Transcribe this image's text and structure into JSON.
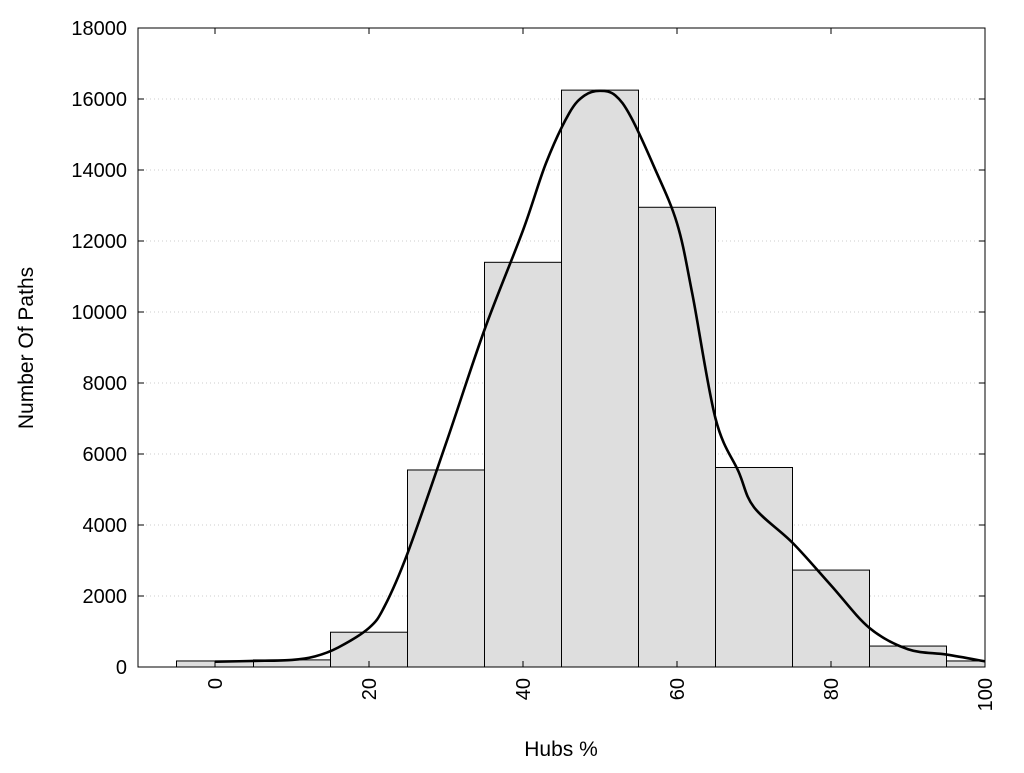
{
  "chart_data": {
    "type": "bar",
    "xlabel": "Hubs %",
    "ylabel": "Number Of Paths",
    "xlim": [
      -10,
      100
    ],
    "ylim": [
      0,
      18000
    ],
    "x_ticks": [
      0,
      20,
      40,
      60,
      80,
      100
    ],
    "y_ticks": [
      0,
      2000,
      4000,
      6000,
      8000,
      10000,
      12000,
      14000,
      16000,
      18000
    ],
    "grid": "horizontal dotted",
    "legend": "none",
    "bin_width": 10,
    "bins": [
      {
        "center": 0,
        "value": 170
      },
      {
        "center": 10,
        "value": 200
      },
      {
        "center": 20,
        "value": 980
      },
      {
        "center": 30,
        "value": 5550
      },
      {
        "center": 40,
        "value": 11400
      },
      {
        "center": 50,
        "value": 16250
      },
      {
        "center": 60,
        "value": 12950
      },
      {
        "center": 70,
        "value": 5620
      },
      {
        "center": 80,
        "value": 2730
      },
      {
        "center": 90,
        "value": 590
      },
      {
        "center": 100,
        "value": 170
      }
    ],
    "curve": {
      "x": [
        0,
        5,
        10,
        13,
        16,
        20,
        22,
        25,
        30,
        35,
        40,
        43,
        46,
        48,
        50,
        52,
        54,
        57,
        60,
        62,
        65,
        68,
        70,
        75,
        80,
        85,
        90,
        95,
        100
      ],
      "y": [
        150,
        170,
        200,
        300,
        550,
        1100,
        1700,
        3200,
        6300,
        9500,
        12300,
        14200,
        15600,
        16100,
        16230,
        16100,
        15500,
        14100,
        12500,
        10500,
        7000,
        5500,
        4500,
        3500,
        2300,
        1100,
        500,
        350,
        160
      ]
    },
    "colors": {
      "bar_fill": "#dedede",
      "bar_stroke": "#000000",
      "curve": "#000000",
      "grid": "#cccccc"
    }
  }
}
